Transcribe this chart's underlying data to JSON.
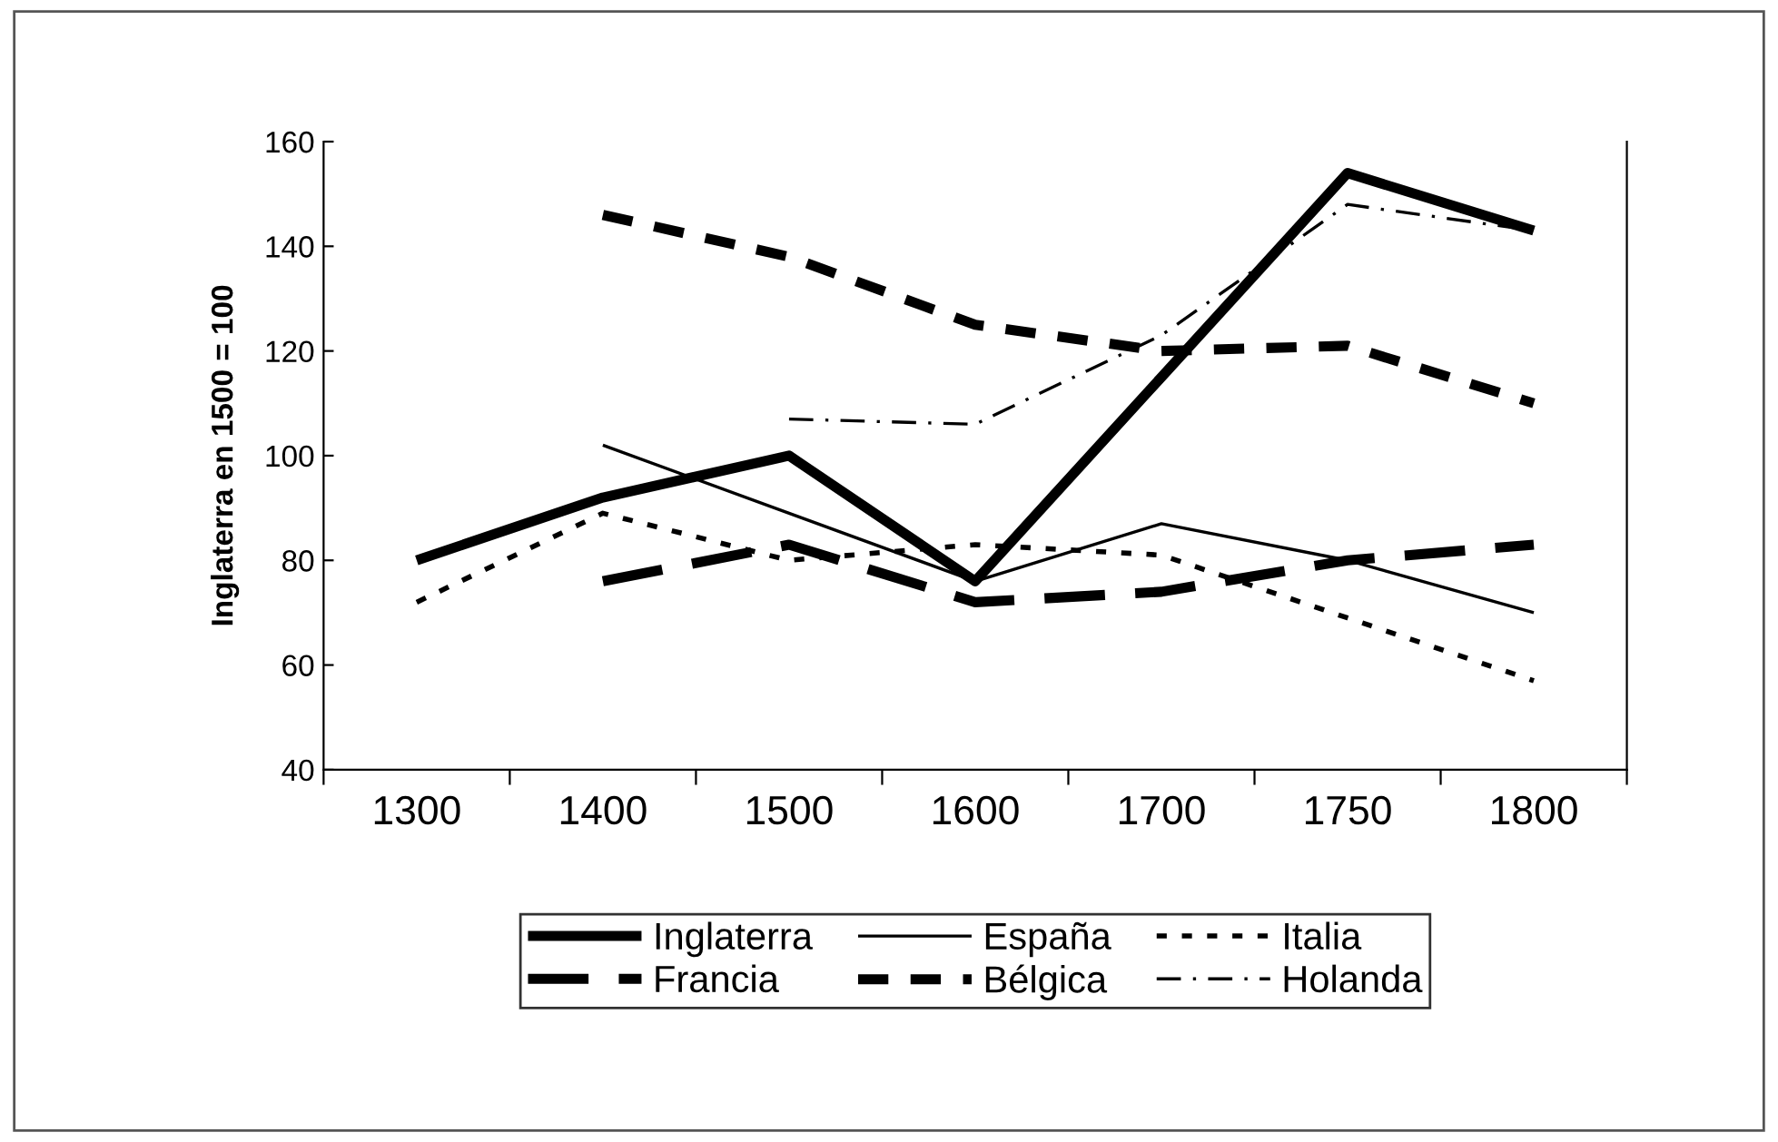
{
  "chart_data": {
    "type": "line",
    "ylabel": "Inglaterra en 1500 = 100",
    "categories": [
      "1300",
      "1400",
      "1500",
      "1600",
      "1700",
      "1750",
      "1800"
    ],
    "ylim": [
      40,
      160
    ],
    "yticks": [
      40,
      60,
      80,
      100,
      120,
      140,
      160
    ],
    "grid": false,
    "legend": "bottom",
    "marker": "none",
    "series": [
      {
        "name": "Inglaterra",
        "color": "#000000",
        "line_style": "solid",
        "values": [
          80,
          92,
          100,
          76,
          115,
          154,
          143
        ]
      },
      {
        "name": "España",
        "color": "#000000",
        "line_style": "solid",
        "values": [
          null,
          102,
          89,
          76,
          87,
          80,
          70
        ]
      },
      {
        "name": "Italia",
        "color": "#000000",
        "line_style": "dotted",
        "values": [
          72,
          89,
          80,
          83,
          81,
          69,
          57
        ]
      },
      {
        "name": "Francia",
        "color": "#000000",
        "line_style": "dashed",
        "values": [
          null,
          76,
          83,
          72,
          74,
          80,
          83
        ]
      },
      {
        "name": "Bélgica",
        "color": "#000000",
        "line_style": "dashed",
        "values": [
          null,
          146,
          138,
          125,
          120,
          121,
          110
        ]
      },
      {
        "name": "Holanda",
        "color": "#000000",
        "line_style": "dashed",
        "values": [
          null,
          null,
          107,
          106,
          123,
          148,
          143
        ]
      }
    ]
  }
}
